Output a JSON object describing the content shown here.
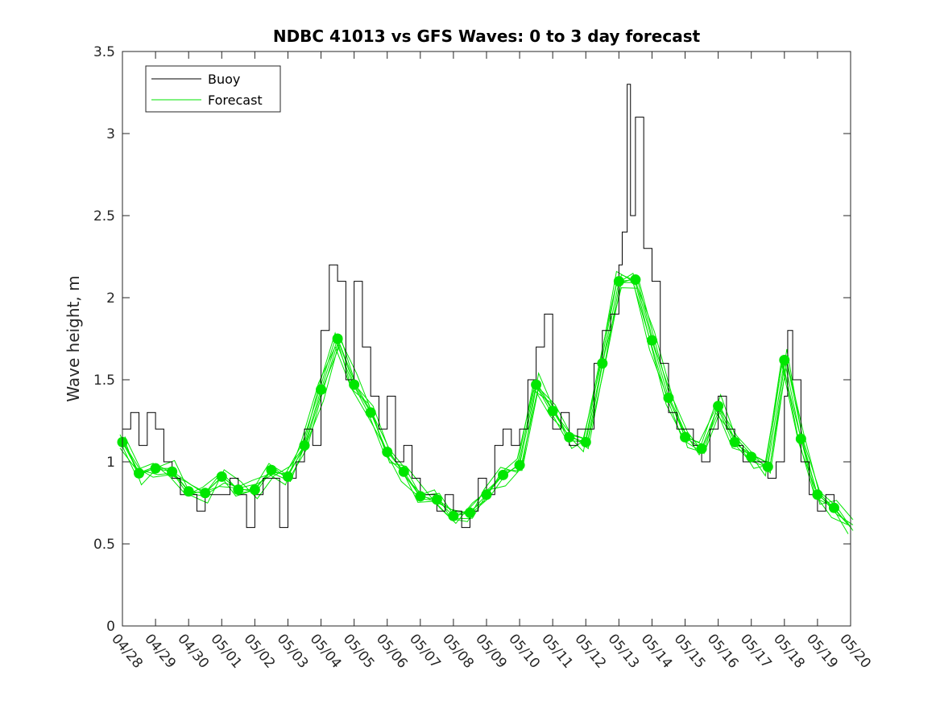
{
  "chart_data": {
    "type": "line",
    "title": "NDBC 41013 vs GFS Waves: 0 to 3 day forecast",
    "xlabel": "",
    "ylabel": "Wave height, m",
    "ylim": [
      0,
      3.5
    ],
    "yticks": [
      "0",
      "0.5",
      "1",
      "1.5",
      "2",
      "2.5",
      "3",
      "3.5"
    ],
    "xlim": [
      "04/28",
      "05/20"
    ],
    "xticks": [
      "04/28",
      "04/29",
      "04/30",
      "05/01",
      "05/02",
      "05/03",
      "05/04",
      "05/05",
      "05/06",
      "05/07",
      "05/08",
      "05/09",
      "05/10",
      "05/11",
      "05/12",
      "05/13",
      "05/14",
      "05/15",
      "05/16",
      "05/17",
      "05/18",
      "05/19",
      "05/20"
    ],
    "grid": false,
    "legend_position": "top-left",
    "legend": [
      "Buoy",
      "Forecast"
    ],
    "colors": {
      "buoy": "#000000",
      "forecast": "#00e600"
    },
    "series": [
      {
        "name": "Buoy",
        "x": [
          "04/28",
          "04/28.25",
          "04/28.5",
          "04/28.75",
          "04/29",
          "04/29.25",
          "04/29.5",
          "04/29.75",
          "04/30",
          "04/30.25",
          "04/30.5",
          "04/30.75",
          "05/01",
          "05/01.25",
          "05/01.5",
          "05/01.75",
          "05/02",
          "05/02.25",
          "05/02.5",
          "05/02.75",
          "05/03",
          "05/03.25",
          "05/03.5",
          "05/03.75",
          "05/04",
          "05/04.25",
          "05/04.5",
          "05/04.75",
          "05/05",
          "05/05.25",
          "05/05.5",
          "05/05.75",
          "05/06",
          "05/06.25",
          "05/06.5",
          "05/06.75",
          "05/07",
          "05/07.25",
          "05/07.5",
          "05/07.75",
          "05/08",
          "05/08.25",
          "05/08.5",
          "05/08.75",
          "05/09",
          "05/09.25",
          "05/09.5",
          "05/09.75",
          "05/10",
          "05/10.25",
          "05/10.5",
          "05/10.75",
          "05/11",
          "05/11.25",
          "05/11.5",
          "05/11.75",
          "05/12",
          "05/12.25",
          "05/12.5",
          "05/12.75",
          "05/13",
          "05/13.1",
          "05/13.25",
          "05/13.35",
          "05/13.5",
          "05/13.75",
          "05/14",
          "05/14.25",
          "05/14.5",
          "05/14.75",
          "05/15",
          "05/15.25",
          "05/15.5",
          "05/15.75",
          "05/16",
          "05/16.25",
          "05/16.5",
          "05/16.75",
          "05/17",
          "05/17.25",
          "05/17.5",
          "05/17.75",
          "05/18",
          "05/18.1",
          "05/18.25",
          "05/18.5",
          "05/18.75",
          "05/19",
          "05/19.25",
          "05/19.5"
        ],
        "y": [
          1.2,
          1.3,
          1.1,
          1.3,
          1.2,
          1.0,
          0.9,
          0.8,
          0.8,
          0.7,
          0.8,
          0.8,
          0.8,
          0.9,
          0.8,
          0.6,
          0.8,
          0.9,
          0.9,
          0.6,
          0.9,
          1.0,
          1.2,
          1.1,
          1.8,
          2.2,
          2.1,
          1.5,
          2.1,
          1.7,
          1.4,
          1.2,
          1.4,
          1.0,
          1.1,
          0.9,
          0.8,
          0.8,
          0.7,
          0.8,
          0.7,
          0.6,
          0.7,
          0.9,
          0.8,
          1.1,
          1.2,
          1.1,
          1.2,
          1.5,
          1.7,
          1.9,
          1.2,
          1.3,
          1.1,
          1.2,
          1.2,
          1.6,
          1.8,
          1.9,
          2.2,
          2.4,
          3.3,
          2.5,
          3.1,
          2.3,
          2.1,
          1.6,
          1.3,
          1.2,
          1.2,
          1.1,
          1.0,
          1.2,
          1.4,
          1.2,
          1.1,
          1.0,
          1.0,
          1.0,
          0.9,
          1.0,
          1.4,
          1.8,
          1.5,
          1.0,
          0.8,
          0.7,
          0.8,
          0.7
        ]
      },
      {
        "name": "Forecast",
        "x": [
          "04/28",
          "04/28.5",
          "04/29",
          "04/29.5",
          "04/30",
          "04/30.5",
          "05/01",
          "05/01.5",
          "05/02",
          "05/02.5",
          "05/03",
          "05/03.5",
          "05/04",
          "05/04.5",
          "05/05",
          "05/05.5",
          "05/06",
          "05/06.5",
          "05/07",
          "05/07.5",
          "05/08",
          "05/08.5",
          "05/09",
          "05/09.5",
          "05/10",
          "05/10.5",
          "05/11",
          "05/11.5",
          "05/12",
          "05/12.5",
          "05/13",
          "05/13.5",
          "05/14",
          "05/14.5",
          "05/15",
          "05/15.5",
          "05/16",
          "05/16.5",
          "05/17",
          "05/17.5",
          "05/18",
          "05/18.5",
          "05/19",
          "05/19.5",
          "05/20"
        ],
        "y": [
          1.12,
          0.93,
          0.96,
          0.94,
          0.82,
          0.81,
          0.91,
          0.83,
          0.83,
          0.95,
          0.91,
          1.1,
          1.44,
          1.75,
          1.47,
          1.3,
          1.06,
          0.94,
          0.79,
          0.77,
          0.67,
          0.69,
          0.8,
          0.92,
          0.98,
          1.47,
          1.31,
          1.15,
          1.12,
          1.6,
          2.1,
          2.11,
          1.74,
          1.39,
          1.15,
          1.08,
          1.34,
          1.12,
          1.03,
          0.97,
          1.62,
          1.14,
          0.8,
          0.72,
          0.6
        ]
      }
    ]
  }
}
